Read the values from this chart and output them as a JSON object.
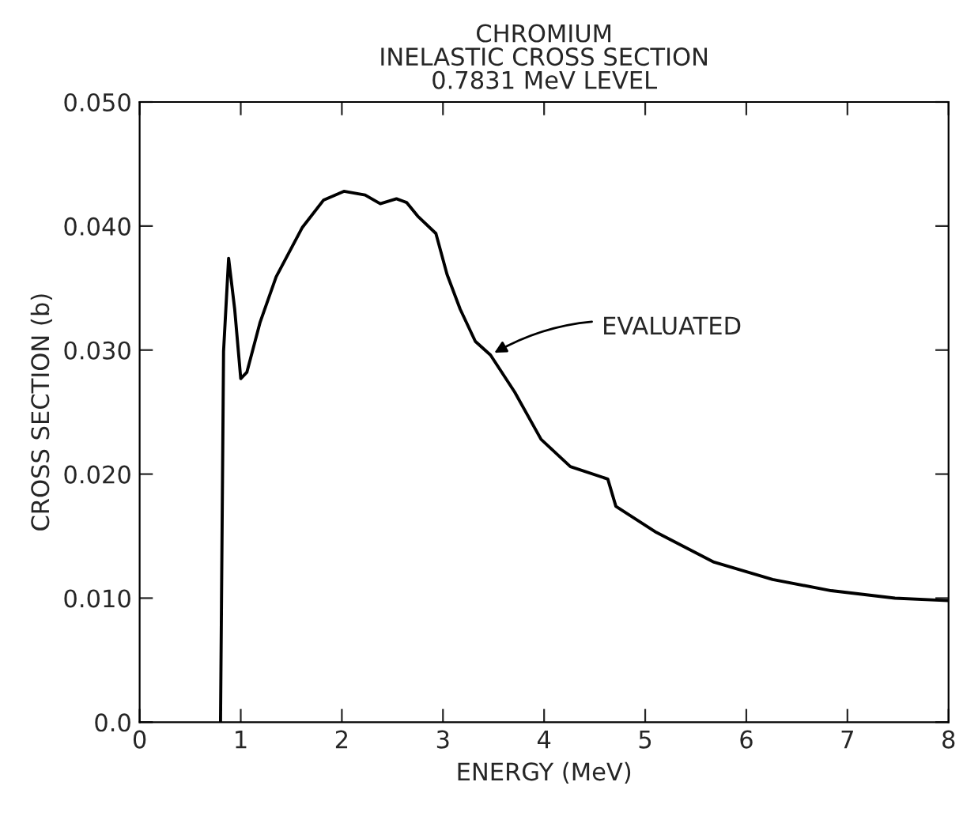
{
  "chart_data": {
    "type": "line",
    "title": "CHROMIUM\nINELASTIC CROSS SECTION\n0.7831 MeV LEVEL",
    "xlabel": "ENERGY (MeV)",
    "ylabel": "CROSS SECTION (b)",
    "x": [
      0.8,
      0.83,
      0.88,
      0.94,
      1.0,
      1.06,
      1.19,
      1.35,
      1.61,
      1.82,
      2.02,
      2.23,
      2.38,
      2.54,
      2.64,
      2.75,
      2.93,
      3.04,
      3.17,
      3.32,
      3.47,
      3.71,
      3.97,
      4.26,
      4.63,
      4.71,
      5.11,
      5.68,
      6.26,
      6.84,
      7.47,
      8.0
    ],
    "series": [
      {
        "color": "#000000",
        "values": [
          0.0,
          0.0299,
          0.0374,
          0.0333,
          0.0277,
          0.0282,
          0.0322,
          0.0359,
          0.0399,
          0.0421,
          0.0428,
          0.0425,
          0.0418,
          0.0422,
          0.0419,
          0.0408,
          0.0394,
          0.0361,
          0.0333,
          0.0307,
          0.0296,
          0.0266,
          0.0228,
          0.0206,
          0.0196,
          0.0174,
          0.0153,
          0.0129,
          0.0115,
          0.0106,
          0.01,
          0.0098
        ]
      }
    ],
    "annotations": [
      {
        "text": "EVALUATED",
        "x": 3.47,
        "y": 0.0296
      }
    ],
    "xlim": [
      0,
      8
    ],
    "ylim": [
      0,
      0.05
    ],
    "xticks": [
      0,
      1,
      2,
      3,
      4,
      5,
      6,
      7,
      8
    ],
    "yticks": [
      {
        "value": 0,
        "label": "0.0"
      },
      {
        "value": 0.01,
        "label": "0.010"
      },
      {
        "value": 0.02,
        "label": "0.020"
      },
      {
        "value": 0.03,
        "label": "0.030"
      },
      {
        "value": 0.04,
        "label": "0.040"
      },
      {
        "value": 0.05,
        "label": "0.050"
      }
    ],
    "grid": false,
    "line_style": "solid",
    "marker": "none"
  }
}
